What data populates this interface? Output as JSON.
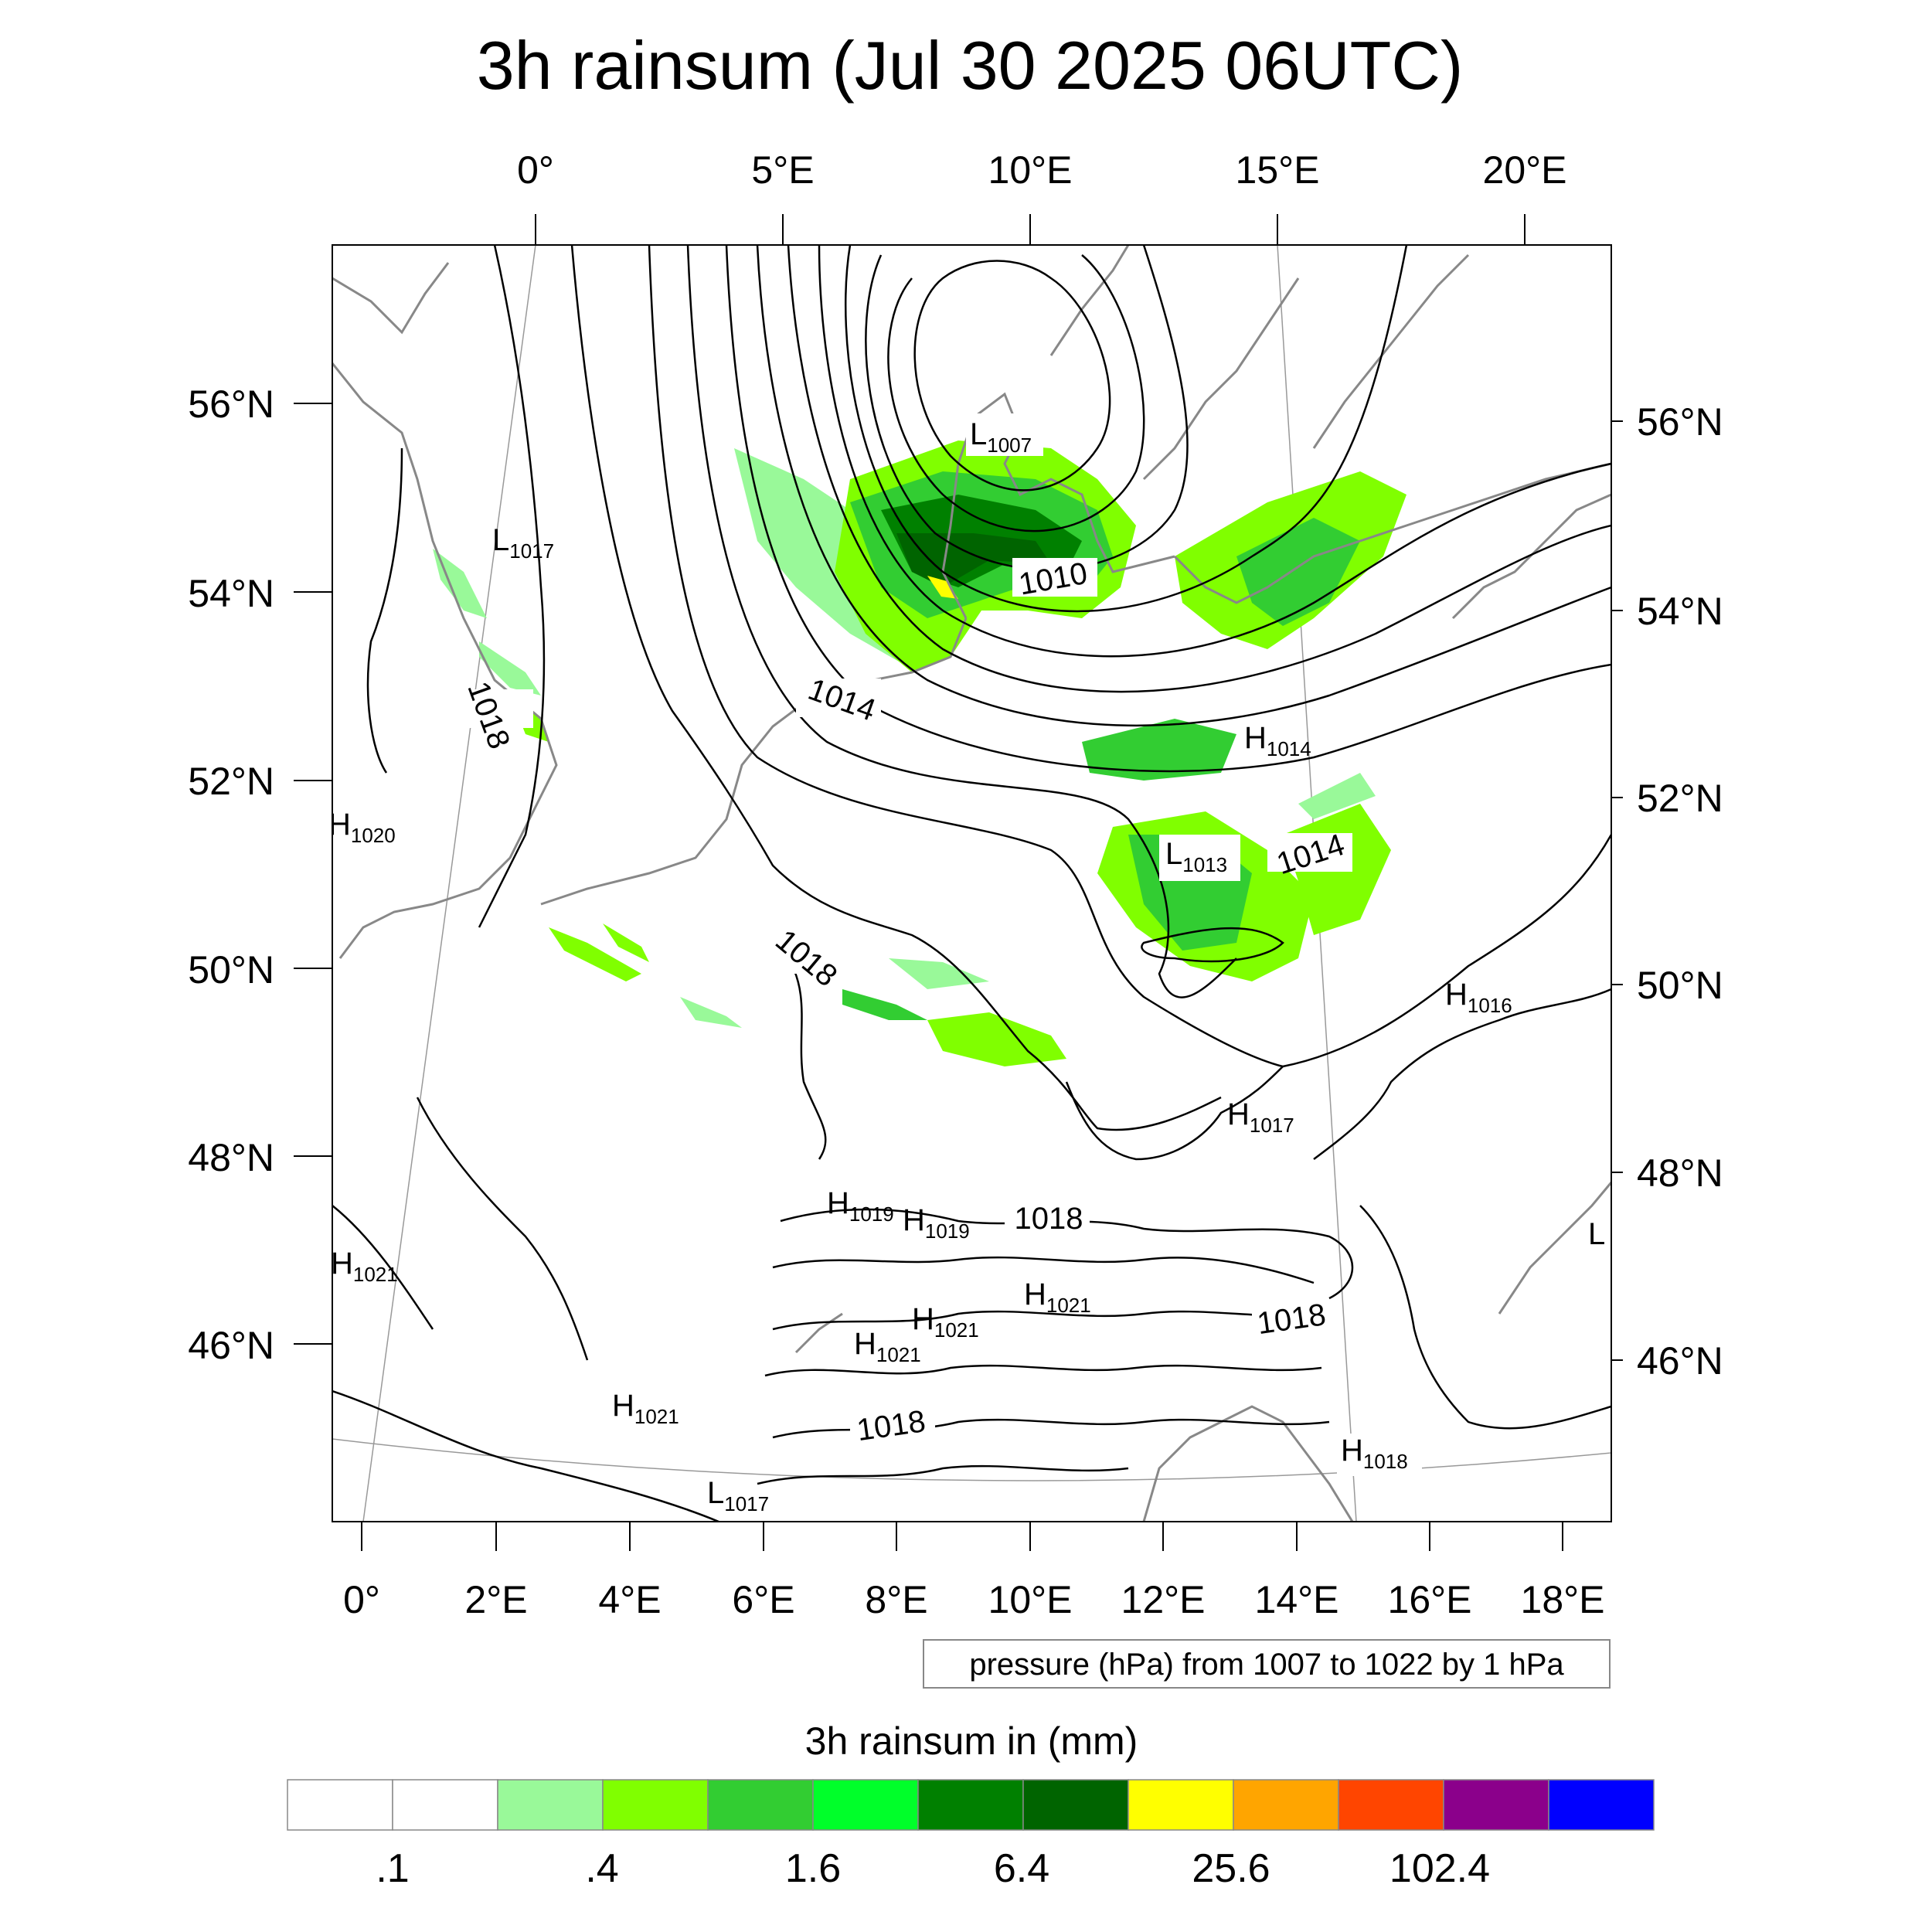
{
  "title": "3h rainsum (Jul 30 2025 06UTC)",
  "top_lon_labels": [
    "0°",
    "5°E",
    "10°E",
    "15°E",
    "20°E"
  ],
  "bottom_lon_labels": [
    "0°",
    "2°E",
    "4°E",
    "6°E",
    "8°E",
    "10°E",
    "12°E",
    "14°E",
    "16°E",
    "18°E"
  ],
  "left_lat_labels": [
    "56°N",
    "54°N",
    "52°N",
    "50°N",
    "48°N",
    "46°N"
  ],
  "right_lat_labels": [
    "56°N",
    "54°N",
    "52°N",
    "50°N",
    "48°N",
    "46°N"
  ],
  "pressure_contour_labels": [
    "1010",
    "1014",
    "1018",
    "1014",
    "1018",
    "1018",
    "1018",
    "1018"
  ],
  "pressure_centers": [
    {
      "type": "L",
      "value": "1007"
    },
    {
      "type": "L",
      "value": "1017"
    },
    {
      "type": "H",
      "value": "1020"
    },
    {
      "type": "H",
      "value": "1014"
    },
    {
      "type": "L",
      "value": "1013"
    },
    {
      "type": "H",
      "value": "1016"
    },
    {
      "type": "H",
      "value": "1017"
    },
    {
      "type": "H",
      "value": "1019"
    },
    {
      "type": "H",
      "value": "1019"
    },
    {
      "type": "H",
      "value": "1021"
    },
    {
      "type": "H",
      "value": "1021"
    },
    {
      "type": "H",
      "value": "1021"
    },
    {
      "type": "H",
      "value": "1021"
    },
    {
      "type": "H",
      "value": "1021"
    },
    {
      "type": "H",
      "value": "1018"
    },
    {
      "type": "L",
      "value": "1017"
    },
    {
      "type": "L",
      "value": ""
    }
  ],
  "contour_info": "pressure (hPa) from 1007 to 1022 by 1 hPa",
  "legend": {
    "title": "3h rainsum in (mm)",
    "tick_labels": [
      ".1",
      ".4",
      "1.6",
      "6.4",
      "25.6",
      "102.4"
    ],
    "colors": [
      "#ffffff",
      "#ffffff",
      "#99f999",
      "#80ff00",
      "#32cd32",
      "#00ff2a",
      "#008000",
      "#006400",
      "#ffff00",
      "#ffa500",
      "#ff4500",
      "#8b008b",
      "#0000ff"
    ]
  }
}
